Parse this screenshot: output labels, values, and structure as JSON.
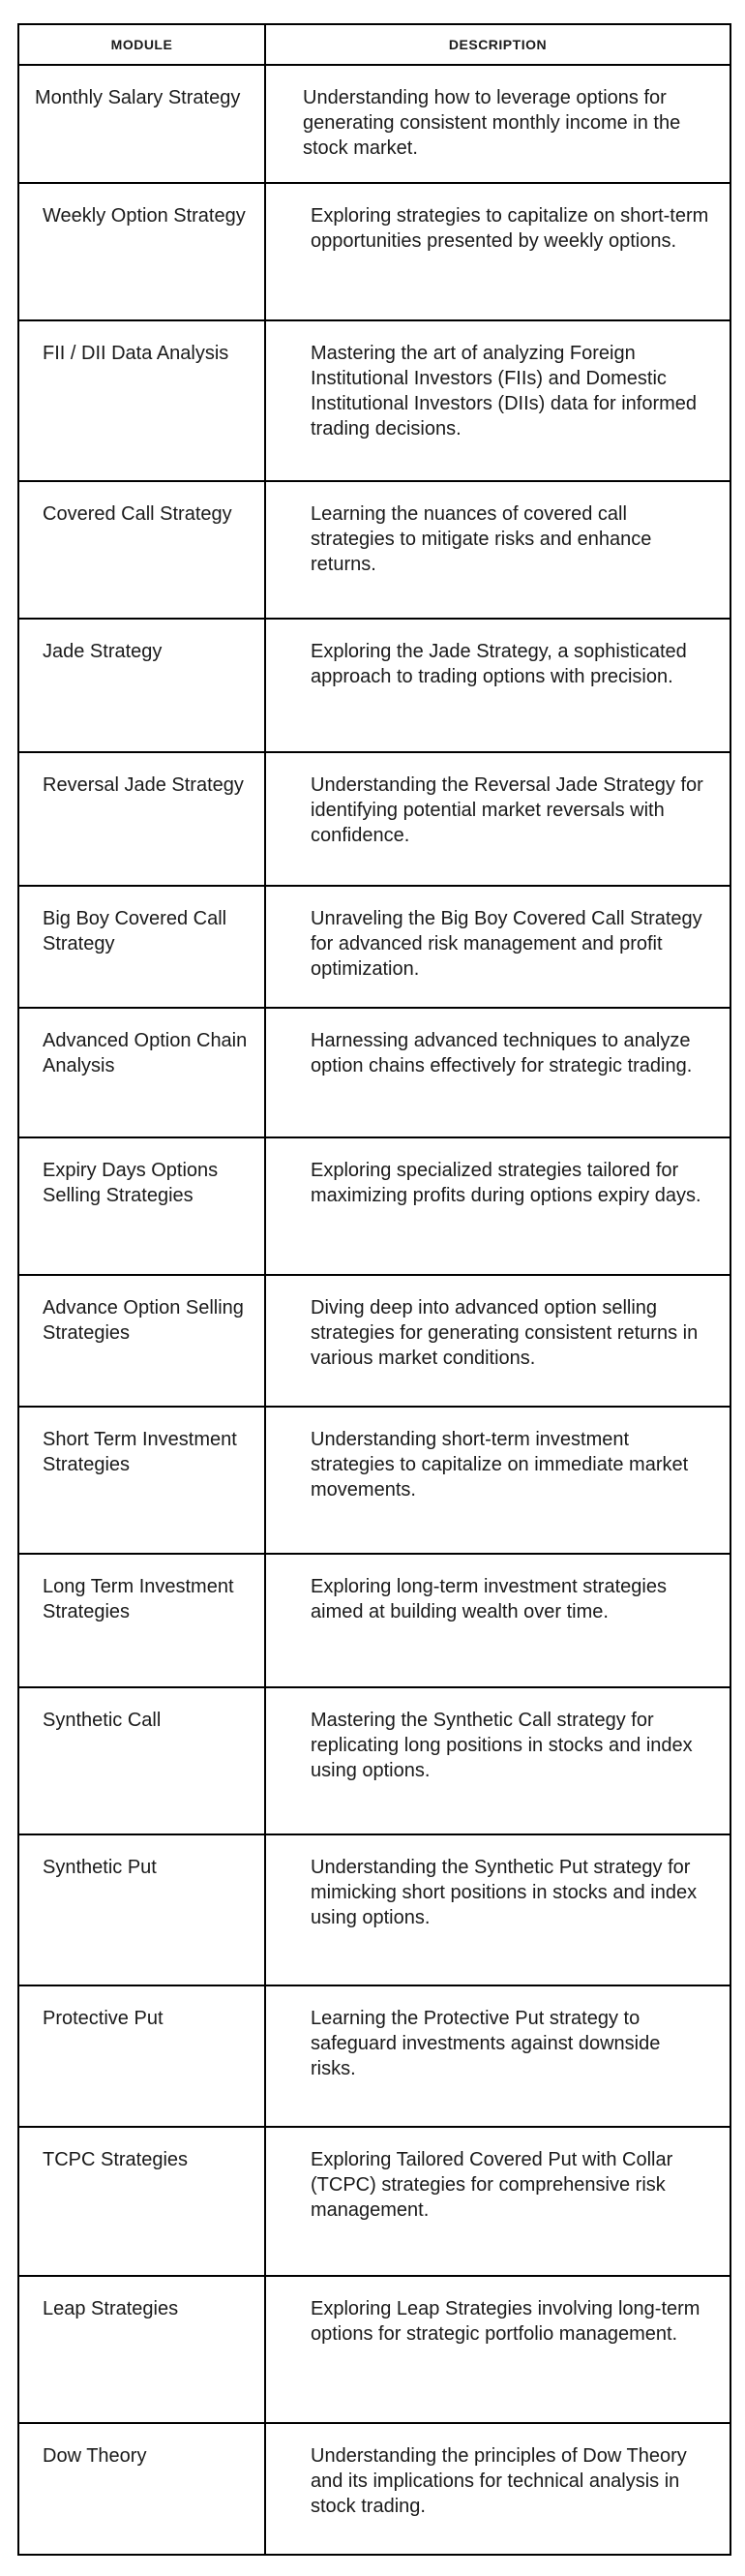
{
  "table": {
    "headers": {
      "module": "MODULE",
      "description": "DESCRIPTION"
    },
    "rows": [
      {
        "module": "Monthly Salary Strategy",
        "description": "Understanding how to leverage options for generating consistent monthly income in the stock market."
      },
      {
        "module": "Weekly Option Strategy",
        "description": "Exploring strategies to capitalize on short-term opportunities presented by weekly options."
      },
      {
        "module": "FII / DII Data Analysis",
        "description": "Mastering the art of analyzing Foreign Institutional Investors (FIIs) and Domestic Institutional Investors (DIIs) data for informed trading decisions."
      },
      {
        "module": "Covered Call Strategy",
        "description": "Learning the nuances of covered call strategies to mitigate risks and enhance returns."
      },
      {
        "module": "Jade Strategy",
        "description": "Exploring the Jade Strategy, a sophisticated approach to trading options with precision."
      },
      {
        "module": "Reversal Jade Strategy",
        "description": "Understanding the Reversal Jade Strategy for identifying potential market reversals with confidence."
      },
      {
        "module": "Big Boy Covered Call Strategy",
        "description": "Unraveling the Big Boy Covered Call Strategy for advanced risk management and profit optimization."
      },
      {
        "module": "Advanced Option Chain Analysis",
        "description": "Harnessing advanced techniques to analyze option chains effectively for strategic trading."
      },
      {
        "module": "Expiry Days Options Selling Strategies",
        "description": "Exploring specialized strategies tailored for maximizing profits during options expiry days."
      },
      {
        "module": "Advance Option Selling Strategies",
        "description": "Diving deep into advanced option selling strategies for generating consistent returns in various market conditions."
      },
      {
        "module": "Short Term Investment Strategies",
        "description": "Understanding short-term investment strategies to capitalize on immediate market movements."
      },
      {
        "module": "Long Term Investment Strategies",
        "description": "Exploring long-term investment strategies aimed at building wealth over time."
      },
      {
        "module": "Synthetic Call",
        "description": "Mastering the Synthetic Call strategy for replicating long positions in stocks and index using options."
      },
      {
        "module": "Synthetic Put",
        "description": "Understanding the Synthetic Put strategy for mimicking short positions in stocks and index using options."
      },
      {
        "module": "Protective Put",
        "description": "Learning the Protective Put strategy to safeguard investments against downside risks."
      },
      {
        "module": "TCPC Strategies",
        "description": "Exploring Tailored Covered Put with Collar (TCPC) strategies for comprehensive risk management."
      },
      {
        "module": "Leap Strategies",
        "description": "Exploring Leap Strategies involving long-term options for strategic portfolio management."
      },
      {
        "module": "Dow Theory",
        "description": "Understanding the principles of Dow Theory and its implications for technical analysis in stock trading."
      }
    ]
  }
}
